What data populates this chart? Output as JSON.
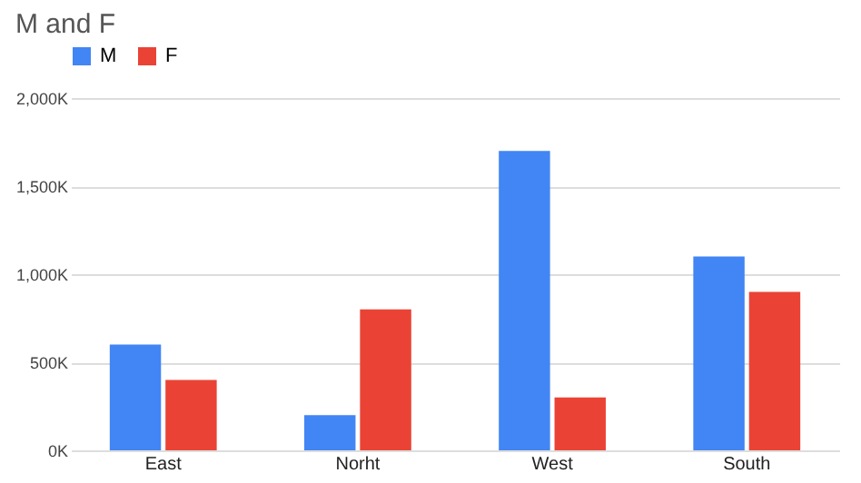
{
  "chart_data": {
    "type": "bar",
    "title": "M and F",
    "categories": [
      "East",
      "Norht",
      "West",
      "South"
    ],
    "series": [
      {
        "name": "M",
        "color": "#4285f4",
        "values": [
          600000,
          200000,
          1700000,
          1100000
        ]
      },
      {
        "name": "F",
        "color": "#ea4335",
        "values": [
          400000,
          800000,
          300000,
          900000
        ]
      }
    ],
    "ylim": [
      0,
      2000000
    ],
    "yticks": [
      {
        "value": 0,
        "label": "0K"
      },
      {
        "value": 500000,
        "label": "500K"
      },
      {
        "value": 1000000,
        "label": "1,000K"
      },
      {
        "value": 1500000,
        "label": "1,500K"
      },
      {
        "value": 2000000,
        "label": "2,000K"
      }
    ],
    "grid": "y",
    "legend": "top"
  }
}
